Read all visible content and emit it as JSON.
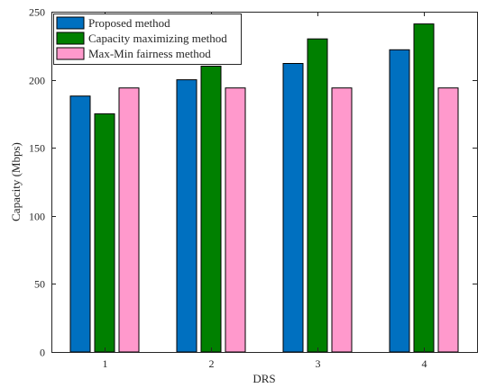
{
  "chart_data": {
    "type": "bar",
    "title": "",
    "xlabel": "DRS",
    "ylabel": "Capacity (Mbps)",
    "categories": [
      "1",
      "2",
      "3",
      "4"
    ],
    "ylim": [
      0,
      250
    ],
    "yticks": [
      0,
      50,
      100,
      150,
      200,
      250
    ],
    "grid": false,
    "legend_position": "top-left",
    "series": [
      {
        "name": "Proposed method",
        "color": "#0070c0",
        "values": [
          188,
          200,
          212,
          222
        ]
      },
      {
        "name": "Capacity maximizing method",
        "color": "#008000",
        "values": [
          175,
          210,
          230,
          241
        ]
      },
      {
        "name": "Max-Min fairness method",
        "color": "#ff99cc",
        "values": [
          194,
          194,
          194,
          194
        ]
      }
    ]
  }
}
